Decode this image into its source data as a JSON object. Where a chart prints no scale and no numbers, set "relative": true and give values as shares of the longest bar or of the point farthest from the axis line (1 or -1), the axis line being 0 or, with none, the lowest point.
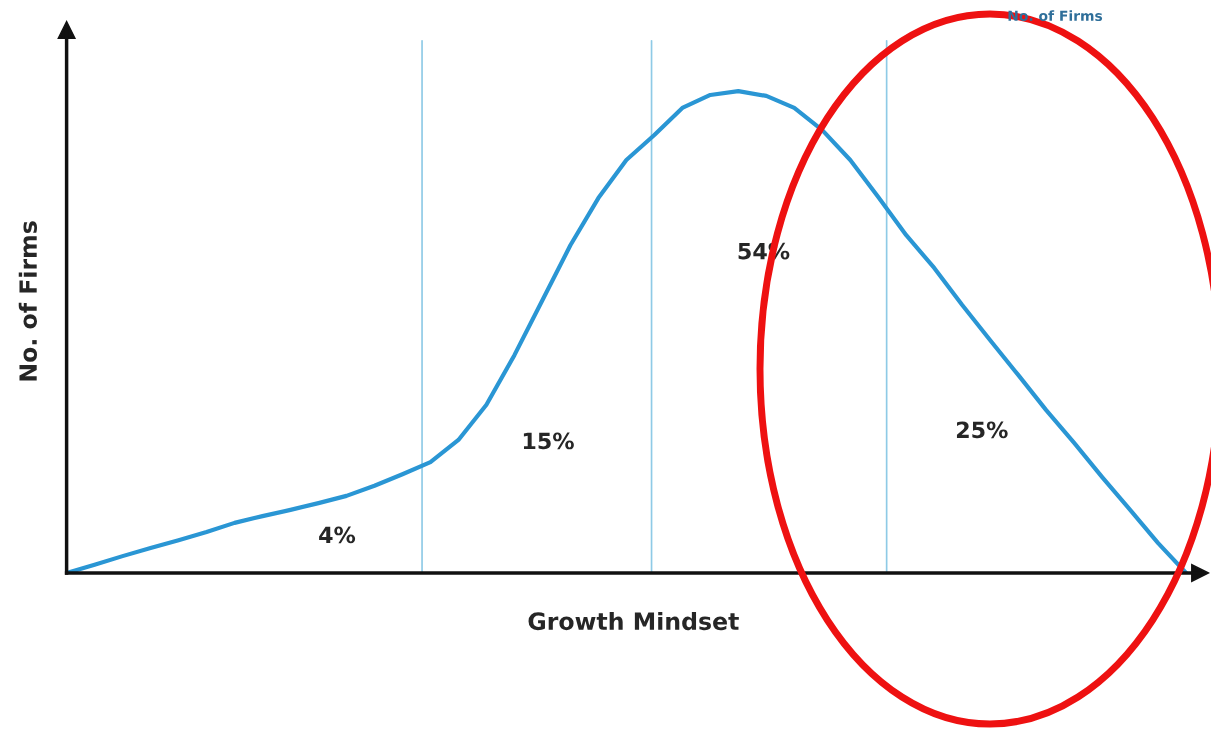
{
  "chart_data": {
    "type": "line",
    "relative": true,
    "xlabel": "Growth Mindset",
    "ylabel": "No. of Firms",
    "categories": [
      null,
      null,
      null,
      null,
      null,
      null,
      null,
      null,
      null,
      null,
      null,
      null,
      null,
      null,
      null,
      null,
      null,
      null,
      null,
      null,
      null,
      null,
      null,
      null,
      null,
      null,
      null,
      null,
      null,
      null,
      null,
      null,
      null,
      null,
      null,
      null,
      null,
      null,
      null,
      null,
      null
    ],
    "series": [
      {
        "color": "#2a96d4",
        "values": [
          0,
          0.017,
          0.035,
          0.052,
          0.068,
          0.085,
          0.104,
          0.118,
          0.131,
          0.145,
          0.16,
          0.181,
          0.205,
          0.23,
          0.276,
          0.349,
          0.452,
          0.566,
          0.68,
          0.778,
          0.857,
          0.909,
          0.965,
          0.992,
          1.0,
          0.99,
          0.965,
          0.919,
          0.857,
          0.78,
          0.701,
          0.633,
          0.556,
          0.483,
          0.411,
          0.338,
          0.27,
          0.199,
          0.131,
          0.062,
          0
        ]
      }
    ],
    "annotations": [
      "4%",
      "15%",
      "54%",
      "25%",
      "No. of Firms"
    ],
    "legend": false
  }
}
